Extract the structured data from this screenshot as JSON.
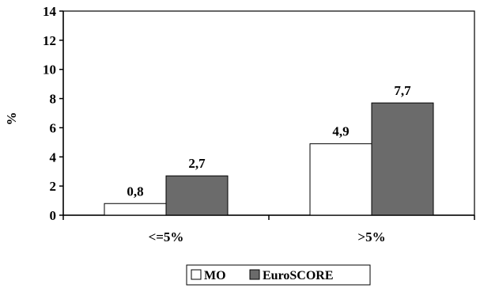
{
  "chart_data": {
    "type": "bar",
    "ylabel": "%",
    "ylim": [
      0,
      14
    ],
    "yticks": [
      "0",
      "2",
      "4",
      "6",
      "8",
      "10",
      "12",
      "14"
    ],
    "categories": [
      "<=5%",
      ">5%"
    ],
    "series": [
      {
        "name": "MO",
        "values": [
          0.8,
          4.9
        ],
        "labels": [
          "0,8",
          "4,9"
        ],
        "color": "#ffffff"
      },
      {
        "name": "EuroSCORE",
        "values": [
          2.7,
          7.7
        ],
        "labels": [
          "2,7",
          "7,7"
        ],
        "color": "#6b6b6b"
      }
    ],
    "grid": false,
    "legend": "bottom"
  }
}
